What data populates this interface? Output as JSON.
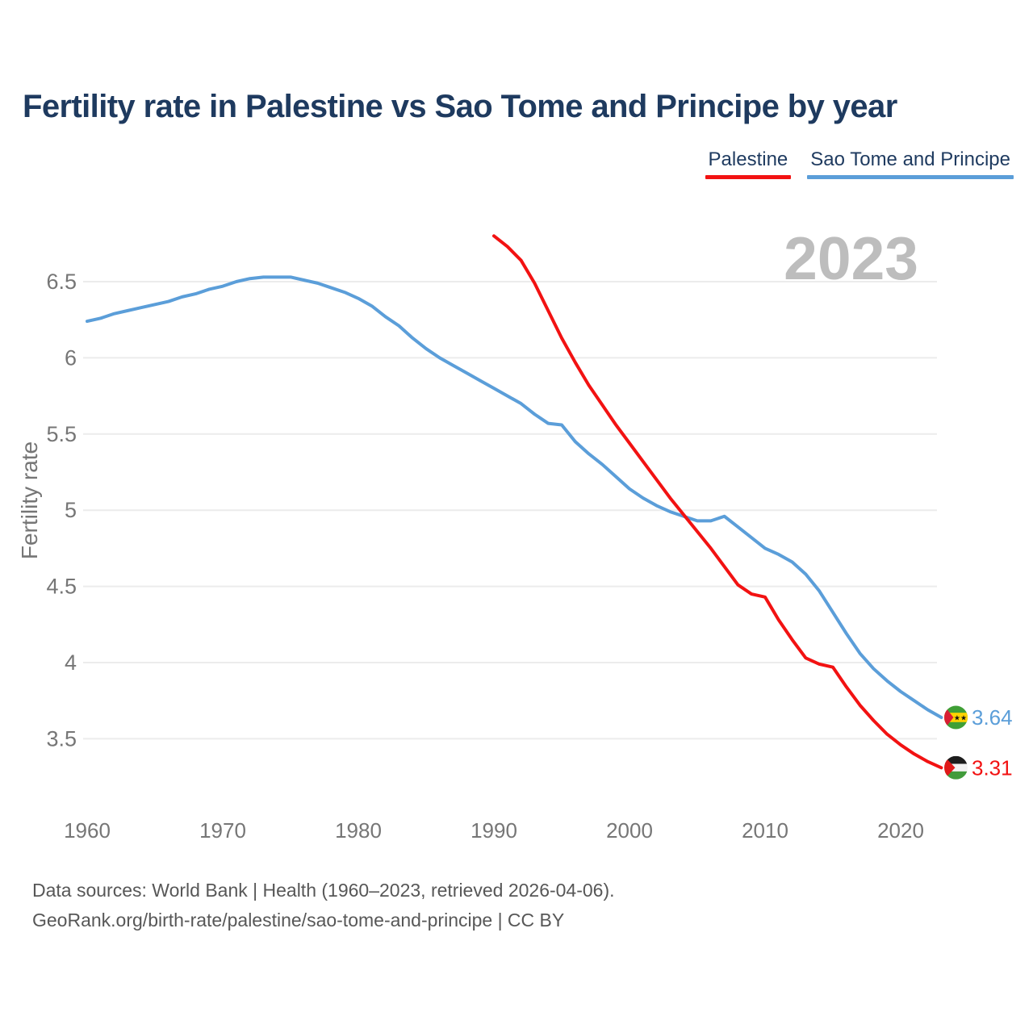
{
  "title": "Fertility rate in Palestine vs Sao Tome and Principe by year",
  "legend": [
    {
      "label": "Palestine",
      "color": "#f21212"
    },
    {
      "label": "Sao Tome and Principe",
      "color": "#5b9ed9"
    }
  ],
  "watermark": "2023",
  "footer": {
    "line1": "Data sources: World Bank | Health (1960–2023, retrieved 2026-04-06).",
    "line2": "GeoRank.org/birth-rate/palestine/sao-tome-and-principe | CC BY"
  },
  "chart_data": {
    "type": "line",
    "title": "Fertility rate in Palestine vs Sao Tome and Principe by year",
    "xlabel": "",
    "ylabel": "Fertility rate",
    "grid": true,
    "legend_position": "top-right",
    "xlim": [
      1957,
      2029
    ],
    "ylim": [
      3.1,
      7.0
    ],
    "x_ticks": [
      1960,
      1970,
      1980,
      1990,
      2000,
      2010,
      2020
    ],
    "y_ticks": [
      "6.5",
      "6",
      "5.5",
      "5",
      "4.5",
      "4",
      "3.5"
    ],
    "series": [
      {
        "name": "Palestine",
        "color": "#f21212",
        "flag_icon": "palestine-flag-icon",
        "end_label": "3.31",
        "x_start": 1990,
        "values": [
          6.8,
          6.73,
          6.64,
          6.49,
          6.31,
          6.13,
          5.97,
          5.82,
          5.69,
          5.56,
          5.44,
          5.32,
          5.2,
          5.08,
          4.97,
          4.86,
          4.75,
          4.63,
          4.51,
          4.45,
          4.43,
          4.28,
          4.15,
          4.03,
          3.99,
          3.97,
          3.84,
          3.72,
          3.62,
          3.53,
          3.46,
          3.4,
          3.35,
          3.31
        ]
      },
      {
        "name": "Sao Tome and Principe",
        "color": "#5b9ed9",
        "flag_icon": "sao-tome-and-principe-flag-icon",
        "end_label": "3.64",
        "x_start": 1960,
        "values": [
          6.24,
          6.26,
          6.29,
          6.31,
          6.33,
          6.35,
          6.37,
          6.4,
          6.42,
          6.45,
          6.47,
          6.5,
          6.52,
          6.53,
          6.53,
          6.53,
          6.51,
          6.49,
          6.46,
          6.43,
          6.39,
          6.34,
          6.27,
          6.21,
          6.13,
          6.06,
          6.0,
          5.95,
          5.9,
          5.85,
          5.8,
          5.75,
          5.7,
          5.63,
          5.57,
          5.56,
          5.45,
          5.37,
          5.3,
          5.22,
          5.14,
          5.08,
          5.03,
          4.99,
          4.96,
          4.93,
          4.93,
          4.96,
          4.89,
          4.82,
          4.75,
          4.71,
          4.66,
          4.58,
          4.47,
          4.33,
          4.19,
          4.06,
          3.96,
          3.88,
          3.81,
          3.75,
          3.69,
          3.64
        ]
      }
    ]
  }
}
